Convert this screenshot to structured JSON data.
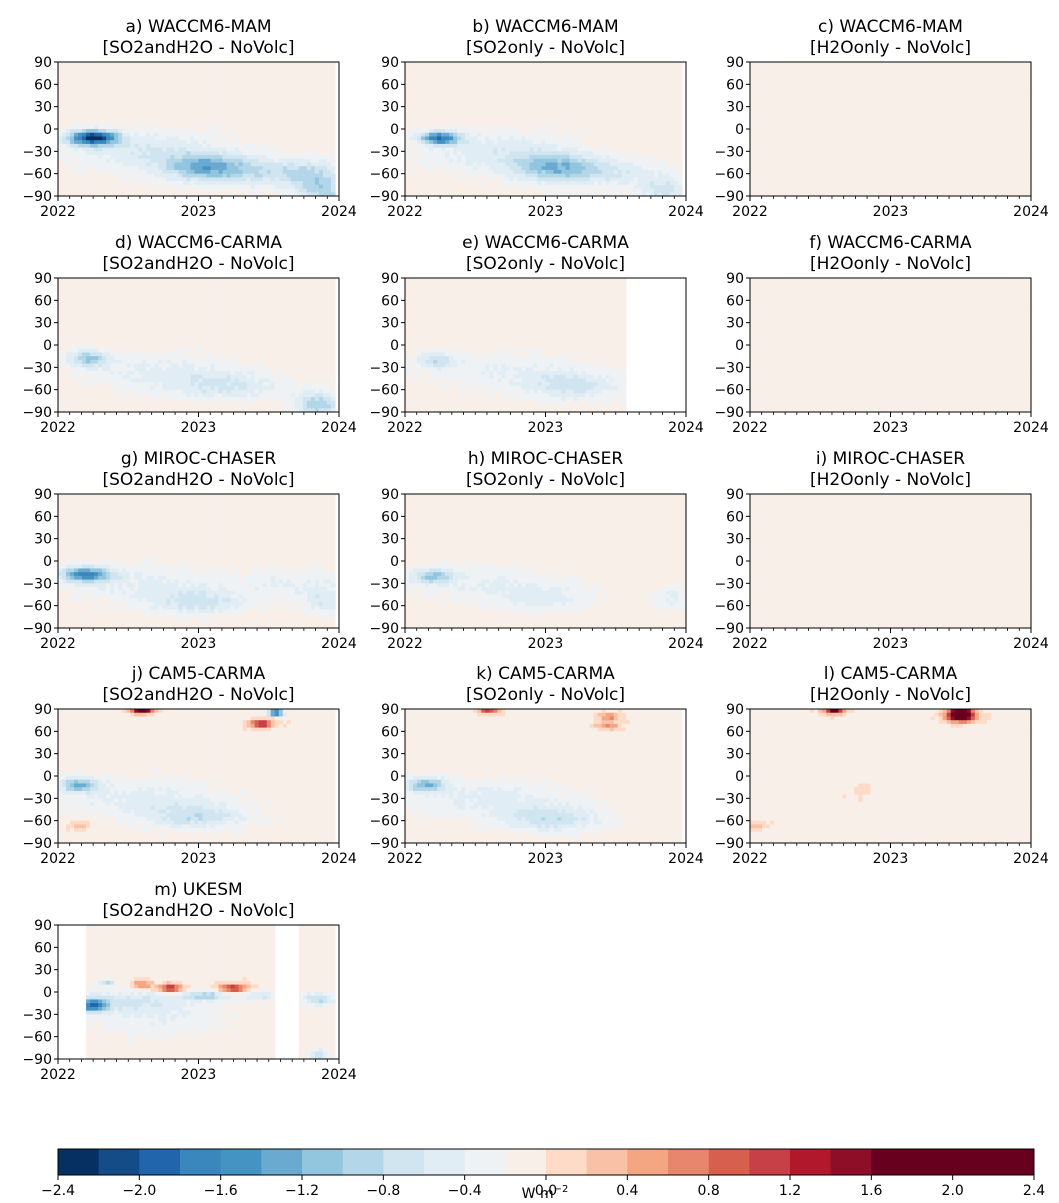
{
  "colorbar": {
    "unit_label": "W m",
    "unit_exponent": "−2",
    "tick_labels": [
      "−2.4",
      "−2.0",
      "−1.6",
      "−1.2",
      "−0.8",
      "−0.4",
      "0.0",
      "0.4",
      "0.8",
      "1.2",
      "1.6",
      "2.0",
      "2.4"
    ],
    "levels": [
      -2.4,
      -2.2,
      -2.0,
      -1.8,
      -1.6,
      -1.4,
      -1.2,
      -1.0,
      -0.8,
      -0.6,
      -0.4,
      -0.2,
      0.0,
      0.2,
      0.4,
      0.6,
      0.8,
      1.0,
      1.2,
      1.4,
      1.6,
      1.8,
      2.0,
      2.2,
      2.4
    ],
    "colors": [
      "#053061",
      "#134c87",
      "#2166ac",
      "#3a87bd",
      "#4393c3",
      "#6aaad1",
      "#92c5de",
      "#b3d6e8",
      "#d1e5f0",
      "#e1edf4",
      "#eef2f5",
      "#f9efe9",
      "#fddbc7",
      "#f9c2a6",
      "#f4a582",
      "#e8866d",
      "#d6604d",
      "#c74048",
      "#b2182b",
      "#8f0e27",
      "#67001f",
      "#67001f",
      "#67001f",
      "#67001f"
    ]
  },
  "axis": {
    "y_tick_labels": [
      "90",
      "60",
      "30",
      "0",
      "−30",
      "−60",
      "−90"
    ],
    "x_tick_labels": [
      "2022",
      "2023",
      "2024"
    ]
  },
  "chart_data": [
    {
      "type": "heatmap",
      "id": "a",
      "title_line1": "a) WACCM6-MAM",
      "title_line2": "[SO2andH2O - NoVolc]",
      "xlim": [
        2022,
        2024
      ],
      "ylim": [
        -90,
        90
      ],
      "data_end": 2023.96,
      "blobs": [
        {
          "x": 2022.25,
          "lat": -12,
          "sx": 0.12,
          "sy": 7,
          "a": -2.1
        },
        {
          "x": 2022.65,
          "lat": -30,
          "sx": 0.4,
          "sy": 20,
          "a": -0.5
        },
        {
          "x": 2023.05,
          "lat": -50,
          "sx": 0.2,
          "sy": 12,
          "a": -0.75
        },
        {
          "x": 2023.35,
          "lat": -58,
          "sx": 0.35,
          "sy": 14,
          "a": -0.6
        },
        {
          "x": 2023.8,
          "lat": -62,
          "sx": 0.15,
          "sy": 14,
          "a": -0.55
        },
        {
          "x": 2023.9,
          "lat": -85,
          "sx": 0.12,
          "sy": 12,
          "a": -0.7
        }
      ]
    },
    {
      "type": "heatmap",
      "id": "b",
      "title_line1": "b) WACCM6-MAM",
      "title_line2": "[SO2only - NoVolc]",
      "xlim": [
        2022,
        2024
      ],
      "ylim": [
        -90,
        90
      ],
      "data_end": 2023.96,
      "blobs": [
        {
          "x": 2022.25,
          "lat": -12,
          "sx": 0.1,
          "sy": 6,
          "a": -1.6
        },
        {
          "x": 2022.65,
          "lat": -30,
          "sx": 0.4,
          "sy": 20,
          "a": -0.45
        },
        {
          "x": 2023.05,
          "lat": -50,
          "sx": 0.2,
          "sy": 12,
          "a": -0.7
        },
        {
          "x": 2023.35,
          "lat": -58,
          "sx": 0.35,
          "sy": 14,
          "a": -0.55
        },
        {
          "x": 2023.85,
          "lat": -82,
          "sx": 0.12,
          "sy": 12,
          "a": -0.6
        }
      ]
    },
    {
      "type": "heatmap",
      "id": "c",
      "title_line1": "c) WACCM6-MAM",
      "title_line2": "[H2Oonly - NoVolc]",
      "xlim": [
        2022,
        2024
      ],
      "ylim": [
        -90,
        90
      ],
      "data_end": 2024,
      "blobs": []
    },
    {
      "type": "heatmap",
      "id": "d",
      "title_line1": "d) WACCM6-CARMA",
      "title_line2": "[SO2andH2O - NoVolc]",
      "xlim": [
        2022,
        2024
      ],
      "ylim": [
        -90,
        90
      ],
      "data_end": 2023.96,
      "blobs": [
        {
          "x": 2022.22,
          "lat": -18,
          "sx": 0.1,
          "sy": 8,
          "a": -0.9
        },
        {
          "x": 2022.7,
          "lat": -35,
          "sx": 0.4,
          "sy": 18,
          "a": -0.35
        },
        {
          "x": 2023.2,
          "lat": -55,
          "sx": 0.3,
          "sy": 14,
          "a": -0.5
        },
        {
          "x": 2023.85,
          "lat": -80,
          "sx": 0.12,
          "sy": 12,
          "a": -0.9
        }
      ]
    },
    {
      "type": "heatmap",
      "id": "e",
      "title_line1": "e) WACCM6-CARMA",
      "title_line2": "[SO2only - NoVolc]",
      "xlim": [
        2022,
        2024
      ],
      "ylim": [
        -90,
        90
      ],
      "data_end": 2023.58,
      "blobs": [
        {
          "x": 2022.22,
          "lat": -20,
          "sx": 0.1,
          "sy": 8,
          "a": -0.6
        },
        {
          "x": 2022.7,
          "lat": -35,
          "sx": 0.4,
          "sy": 18,
          "a": -0.3
        },
        {
          "x": 2023.2,
          "lat": -55,
          "sx": 0.25,
          "sy": 14,
          "a": -0.55
        }
      ]
    },
    {
      "type": "heatmap",
      "id": "f",
      "title_line1": "f) WACCM6-CARMA",
      "title_line2": "[H2Oonly - NoVolc]",
      "xlim": [
        2022,
        2024
      ],
      "ylim": [
        -90,
        90
      ],
      "data_end": 2024,
      "blobs": []
    },
    {
      "type": "heatmap",
      "id": "g",
      "title_line1": "g) MIROC-CHASER",
      "title_line2": "[SO2andH2O - NoVolc]",
      "xlim": [
        2022,
        2024
      ],
      "ylim": [
        -90,
        90
      ],
      "data_end": 2023.96,
      "blobs": [
        {
          "x": 2022.2,
          "lat": -18,
          "sx": 0.12,
          "sy": 7,
          "a": -1.5
        },
        {
          "x": 2022.6,
          "lat": -30,
          "sx": 0.4,
          "sy": 18,
          "a": -0.35
        },
        {
          "x": 2023.0,
          "lat": -55,
          "sx": 0.25,
          "sy": 12,
          "a": -0.55
        },
        {
          "x": 2023.7,
          "lat": -30,
          "sx": 0.3,
          "sy": 15,
          "a": -0.3
        },
        {
          "x": 2023.9,
          "lat": -55,
          "sx": 0.1,
          "sy": 12,
          "a": -0.45
        }
      ]
    },
    {
      "type": "heatmap",
      "id": "h",
      "title_line1": "h) MIROC-CHASER",
      "title_line2": "[SO2only - NoVolc]",
      "xlim": [
        2022,
        2024
      ],
      "ylim": [
        -90,
        90
      ],
      "data_end": 2024,
      "blobs": [
        {
          "x": 2022.2,
          "lat": -20,
          "sx": 0.1,
          "sy": 7,
          "a": -0.9
        },
        {
          "x": 2022.6,
          "lat": -30,
          "sx": 0.4,
          "sy": 18,
          "a": -0.3
        },
        {
          "x": 2023.0,
          "lat": -50,
          "sx": 0.25,
          "sy": 12,
          "a": -0.35
        },
        {
          "x": 2023.9,
          "lat": -50,
          "sx": 0.1,
          "sy": 12,
          "a": -0.35
        }
      ]
    },
    {
      "type": "heatmap",
      "id": "i",
      "title_line1": "i) MIROC-CHASER",
      "title_line2": "[H2Oonly - NoVolc]",
      "xlim": [
        2022,
        2024
      ],
      "ylim": [
        -90,
        90
      ],
      "data_end": 2024,
      "blobs": []
    },
    {
      "type": "heatmap",
      "id": "j",
      "title_line1": "j) CAM5-CARMA",
      "title_line2": "[SO2andH2O - NoVolc]",
      "xlim": [
        2022,
        2024
      ],
      "ylim": [
        -90,
        90
      ],
      "data_end": 2023.96,
      "blobs": [
        {
          "x": 2022.15,
          "lat": -12,
          "sx": 0.1,
          "sy": 7,
          "a": -1.0
        },
        {
          "x": 2022.6,
          "lat": -30,
          "sx": 0.4,
          "sy": 18,
          "a": -0.4
        },
        {
          "x": 2023.0,
          "lat": -55,
          "sx": 0.25,
          "sy": 12,
          "a": -0.6
        },
        {
          "x": 2022.6,
          "lat": 88,
          "sx": 0.05,
          "sy": 3,
          "a": 2.4
        },
        {
          "x": 2023.45,
          "lat": 70,
          "sx": 0.06,
          "sy": 4,
          "a": 1.4
        },
        {
          "x": 2023.55,
          "lat": 85,
          "sx": 0.04,
          "sy": 3,
          "a": -2.0
        },
        {
          "x": 2022.15,
          "lat": -67,
          "sx": 0.06,
          "sy": 4,
          "a": 0.35
        }
      ]
    },
    {
      "type": "heatmap",
      "id": "k",
      "title_line1": "k) CAM5-CARMA",
      "title_line2": "[SO2only - NoVolc]",
      "xlim": [
        2022,
        2024
      ],
      "ylim": [
        -90,
        90
      ],
      "data_end": 2023.96,
      "blobs": [
        {
          "x": 2022.15,
          "lat": -12,
          "sx": 0.1,
          "sy": 7,
          "a": -1.0
        },
        {
          "x": 2022.6,
          "lat": -30,
          "sx": 0.4,
          "sy": 18,
          "a": -0.4
        },
        {
          "x": 2023.05,
          "lat": -58,
          "sx": 0.25,
          "sy": 12,
          "a": -0.65
        },
        {
          "x": 2022.6,
          "lat": 88,
          "sx": 0.05,
          "sy": 3,
          "a": 1.2
        },
        {
          "x": 2023.45,
          "lat": 68,
          "sx": 0.06,
          "sy": 4,
          "a": 0.7
        },
        {
          "x": 2023.45,
          "lat": 80,
          "sx": 0.05,
          "sy": 3,
          "a": 0.9
        }
      ]
    },
    {
      "type": "heatmap",
      "id": "l",
      "title_line1": "l) CAM5-CARMA",
      "title_line2": "[H2Oonly - NoVolc]",
      "xlim": [
        2022,
        2024
      ],
      "ylim": [
        -90,
        90
      ],
      "data_end": 2024,
      "blobs": [
        {
          "x": 2022.6,
          "lat": 88,
          "sx": 0.05,
          "sy": 3,
          "a": 1.8
        },
        {
          "x": 2023.5,
          "lat": 80,
          "sx": 0.07,
          "sy": 5,
          "a": 2.4
        },
        {
          "x": 2023.5,
          "lat": 88,
          "sx": 0.05,
          "sy": 3,
          "a": 1.8
        },
        {
          "x": 2022.05,
          "lat": -67,
          "sx": 0.05,
          "sy": 4,
          "a": 0.4
        },
        {
          "x": 2022.8,
          "lat": -20,
          "sx": 0.05,
          "sy": 5,
          "a": 0.25
        }
      ]
    },
    {
      "type": "heatmap",
      "id": "m",
      "title_line1": "m) UKESM",
      "title_line2": "[SO2andH2O - NoVolc]",
      "xlim": [
        2022,
        2024
      ],
      "ylim": [
        -90,
        90
      ],
      "data_start": 2022.2,
      "data_end": 2023.96,
      "gap": [
        2023.55,
        2023.72
      ],
      "blobs": [
        {
          "x": 2022.25,
          "lat": -18,
          "sx": 0.07,
          "sy": 6,
          "a": -1.5
        },
        {
          "x": 2022.5,
          "lat": -12,
          "sx": 0.35,
          "sy": 10,
          "a": -0.45
        },
        {
          "x": 2022.7,
          "lat": -35,
          "sx": 0.35,
          "sy": 18,
          "a": -0.3
        },
        {
          "x": 2022.8,
          "lat": 5,
          "sx": 0.06,
          "sy": 4,
          "a": 1.5
        },
        {
          "x": 2022.6,
          "lat": 10,
          "sx": 0.05,
          "sy": 4,
          "a": 0.9
        },
        {
          "x": 2023.25,
          "lat": 5,
          "sx": 0.07,
          "sy": 4,
          "a": 1.3
        },
        {
          "x": 2023.05,
          "lat": -5,
          "sx": 0.1,
          "sy": 4,
          "a": -0.8
        },
        {
          "x": 2023.45,
          "lat": -5,
          "sx": 0.1,
          "sy": 4,
          "a": -0.6
        },
        {
          "x": 2023.85,
          "lat": -10,
          "sx": 0.08,
          "sy": 6,
          "a": -0.8
        },
        {
          "x": 2023.85,
          "lat": -85,
          "sx": 0.05,
          "sy": 6,
          "a": -0.7
        },
        {
          "x": 2022.35,
          "lat": 12,
          "sx": 0.05,
          "sy": 3,
          "a": -0.7
        }
      ]
    }
  ]
}
